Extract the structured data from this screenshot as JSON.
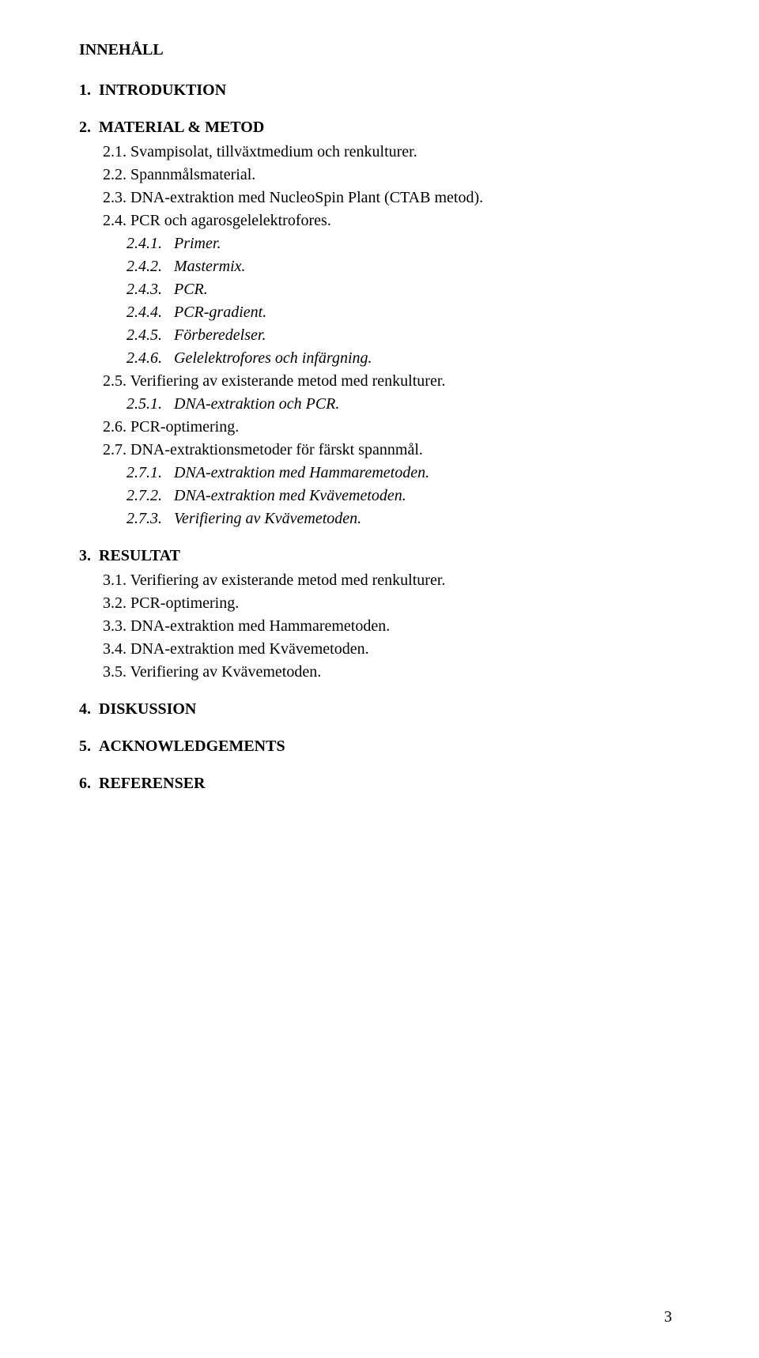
{
  "title": "INNEHÅLL",
  "page_number": "3",
  "sections": {
    "s1": {
      "num": "1.",
      "title": "INTRODUKTION"
    },
    "s2": {
      "num": "2.",
      "title": "MATERIAL & METOD",
      "items": {
        "i1": "2.1. Svampisolat, tillväxtmedium och renkulturer.",
        "i2": "2.2. Spannmålsmaterial.",
        "i3": "2.3. DNA-extraktion med NucleoSpin Plant (CTAB metod).",
        "i4": "2.4. PCR och agarosgelelektrofores.",
        "i4_1": "2.4.1.   Primer.",
        "i4_2": "2.4.2.   Mastermix.",
        "i4_3": "2.4.3.   PCR.",
        "i4_4": "2.4.4.   PCR-gradient.",
        "i4_5": "2.4.5.   Förberedelser.",
        "i4_6": "2.4.6.   Gelelektrofores och infärgning.",
        "i5": "2.5. Verifiering av existerande metod med renkulturer.",
        "i5_1": "2.5.1.   DNA-extraktion och PCR.",
        "i6": "2.6. PCR-optimering.",
        "i7": "2.7. DNA-extraktionsmetoder för färskt spannmål.",
        "i7_1": "2.7.1.   DNA-extraktion med Hammaremetoden.",
        "i7_2": "2.7.2.   DNA-extraktion med Kvävemetoden.",
        "i7_3": "2.7.3.   Verifiering av Kvävemetoden."
      }
    },
    "s3": {
      "num": "3.",
      "title": "RESULTAT",
      "items": {
        "i1": "3.1. Verifiering av existerande metod med renkulturer.",
        "i2": "3.2. PCR-optimering.",
        "i3": "3.3. DNA-extraktion med Hammaremetoden.",
        "i4": "3.4. DNA-extraktion med Kvävemetoden.",
        "i5": "3.5. Verifiering av Kvävemetoden."
      }
    },
    "s4": {
      "num": "4.",
      "title": "DISKUSSION"
    },
    "s5": {
      "num": "5.",
      "title": "ACKNOWLEDGEMENTS"
    },
    "s6": {
      "num": "6.",
      "title": "REFERENSER"
    }
  }
}
